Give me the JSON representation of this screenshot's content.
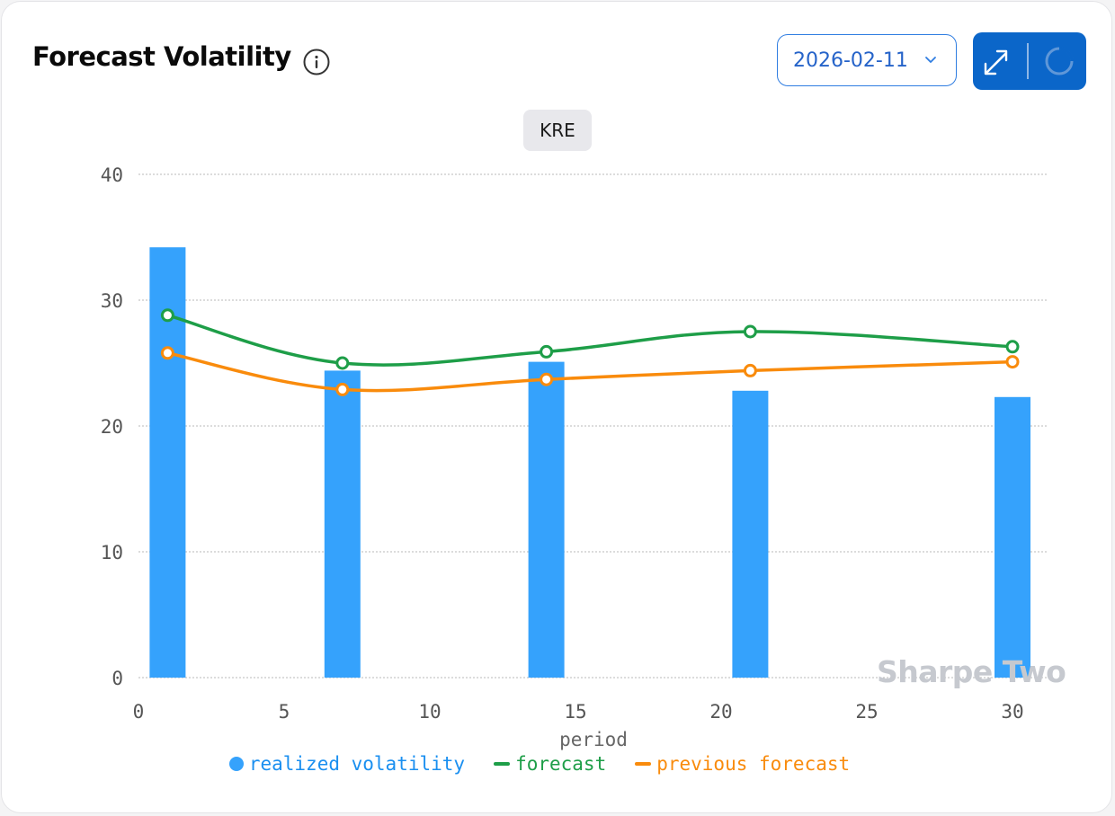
{
  "header": {
    "title": "Forecast Volatility",
    "info_icon": "info-icon",
    "date_value": "2026-02-11",
    "expand_icon": "expand-icon",
    "refresh_icon": "refresh-spinner-icon"
  },
  "colors": {
    "realized": "#35a2fc",
    "forecast": "#1e9e48",
    "previous_forecast": "#f98b0c",
    "accent": "#0b66c9"
  },
  "watermark": "Sharpe Two",
  "chart_data": {
    "type": "bar+line",
    "subtitle": "KRE",
    "xlabel": "period",
    "ylabel": "",
    "xlim": [
      0,
      31
    ],
    "ylim": [
      0,
      40
    ],
    "x_ticks": [
      0,
      5,
      10,
      15,
      20,
      25,
      30
    ],
    "y_ticks": [
      0,
      10,
      20,
      30,
      40
    ],
    "grid": true,
    "legend_position": "bottom",
    "series": [
      {
        "name": "realized volatility",
        "kind": "bar",
        "x": [
          1,
          7,
          14,
          21,
          30
        ],
        "values": [
          34.2,
          24.4,
          25.1,
          22.8,
          22.3
        ]
      },
      {
        "name": "forecast",
        "kind": "line",
        "x": [
          1,
          7,
          14,
          21,
          30
        ],
        "values": [
          28.8,
          25.0,
          25.9,
          27.5,
          26.3
        ]
      },
      {
        "name": "previous forecast",
        "kind": "line",
        "x": [
          1,
          7,
          14,
          21,
          30
        ],
        "values": [
          25.8,
          22.9,
          23.7,
          24.4,
          25.1
        ]
      }
    ]
  }
}
